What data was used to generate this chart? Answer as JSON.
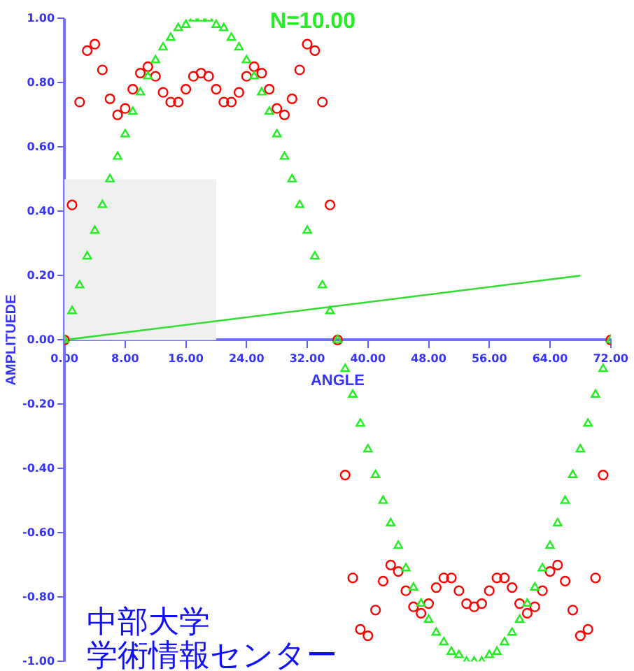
{
  "chart_data": {
    "type": "scatter",
    "title": "N=10.00",
    "xlabel": "ANGLE",
    "ylabel": "AMPLITUEDE",
    "annotations": [
      "中部大学",
      "学術情報センター"
    ],
    "x": [
      0,
      1,
      2,
      3,
      4,
      5,
      6,
      7,
      8,
      9,
      10,
      11,
      12,
      13,
      14,
      15,
      16,
      17,
      18,
      19,
      20,
      21,
      22,
      23,
      24,
      25,
      26,
      27,
      28,
      29,
      30,
      31,
      32,
      33,
      34,
      35,
      36,
      37,
      38,
      39,
      40,
      41,
      42,
      43,
      44,
      45,
      46,
      47,
      48,
      49,
      50,
      51,
      52,
      53,
      54,
      55,
      56,
      57,
      58,
      59,
      60,
      61,
      62,
      63,
      64,
      65,
      66,
      67,
      68,
      69,
      70,
      71,
      72
    ],
    "series": [
      {
        "type": "area",
        "color": "#f0f0f0",
        "x": [
          0,
          20
        ],
        "values": [
          0.5,
          0.5
        ],
        "marker": "none"
      },
      {
        "type": "line",
        "color": "#33dd33",
        "x": [
          0,
          68
        ],
        "values": [
          0,
          0.2
        ],
        "marker": "none"
      },
      {
        "type": "scatter",
        "color": "#ff0000",
        "marker": "circle",
        "values": [
          0,
          0.42,
          0.74,
          0.9,
          0.92,
          0.84,
          0.75,
          0.7,
          0.72,
          0.78,
          0.83,
          0.85,
          0.82,
          0.77,
          0.74,
          0.74,
          0.78,
          0.82,
          0.83,
          0.82,
          0.78,
          0.74,
          0.74,
          0.77,
          0.82,
          0.85,
          0.83,
          0.78,
          0.72,
          0.7,
          0.75,
          0.84,
          0.92,
          0.9,
          0.74,
          0.42,
          0,
          -0.42,
          -0.74,
          -0.9,
          -0.92,
          -0.84,
          -0.75,
          -0.7,
          -0.72,
          -0.78,
          -0.83,
          -0.85,
          -0.82,
          -0.77,
          -0.74,
          -0.74,
          -0.78,
          -0.82,
          -0.83,
          -0.82,
          -0.78,
          -0.74,
          -0.74,
          -0.77,
          -0.82,
          -0.85,
          -0.83,
          -0.78,
          -0.72,
          -0.7,
          -0.75,
          -0.84,
          -0.92,
          -0.9,
          -0.74,
          -0.42,
          0
        ]
      },
      {
        "type": "scatter",
        "color": "#22ee22",
        "marker": "triangle",
        "values": [
          0,
          0.09,
          0.17,
          0.26,
          0.34,
          0.42,
          0.5,
          0.57,
          0.64,
          0.71,
          0.77,
          0.82,
          0.87,
          0.91,
          0.94,
          0.97,
          0.98,
          1,
          1,
          1,
          0.98,
          0.97,
          0.94,
          0.91,
          0.87,
          0.82,
          0.77,
          0.71,
          0.64,
          0.57,
          0.5,
          0.42,
          0.34,
          0.26,
          0.17,
          0.09,
          0,
          -0.09,
          -0.17,
          -0.26,
          -0.34,
          -0.42,
          -0.5,
          -0.57,
          -0.64,
          -0.71,
          -0.77,
          -0.82,
          -0.87,
          -0.91,
          -0.94,
          -0.97,
          -0.98,
          -1,
          -1,
          -1,
          -0.98,
          -0.97,
          -0.94,
          -0.91,
          -0.87,
          -0.82,
          -0.77,
          -0.71,
          -0.64,
          -0.57,
          -0.5,
          -0.42,
          -0.34,
          -0.26,
          -0.17,
          -0.09,
          0
        ]
      }
    ],
    "xlim": [
      0,
      72
    ],
    "xticks": [
      {
        "value": 0,
        "label": "0.00"
      },
      {
        "value": 8,
        "label": "8.00"
      },
      {
        "value": 16,
        "label": "16.00"
      },
      {
        "value": 24,
        "label": "24.00"
      },
      {
        "value": 32,
        "label": "32.00"
      },
      {
        "value": 40,
        "label": "40.00"
      },
      {
        "value": 48,
        "label": "48.00"
      },
      {
        "value": 56,
        "label": "56.00"
      },
      {
        "value": 64,
        "label": "64.00"
      },
      {
        "value": 72,
        "label": "72.00"
      }
    ],
    "ylim": [
      -1,
      1
    ],
    "yticks": [
      {
        "value": -1,
        "label": "-1.00"
      },
      {
        "value": -0.8,
        "label": "-0.80"
      },
      {
        "value": -0.6,
        "label": "-0.60"
      },
      {
        "value": -0.4,
        "label": "-0.40"
      },
      {
        "value": -0.2,
        "label": "-0.20"
      },
      {
        "value": 0,
        "label": "0.00"
      },
      {
        "value": 0.2,
        "label": "0.20"
      },
      {
        "value": 0.4,
        "label": "0.40"
      },
      {
        "value": 0.6,
        "label": "0.60"
      },
      {
        "value": 0.8,
        "label": "0.80"
      },
      {
        "value": 1,
        "label": "1.00"
      }
    ],
    "grid": false,
    "legend": false
  }
}
